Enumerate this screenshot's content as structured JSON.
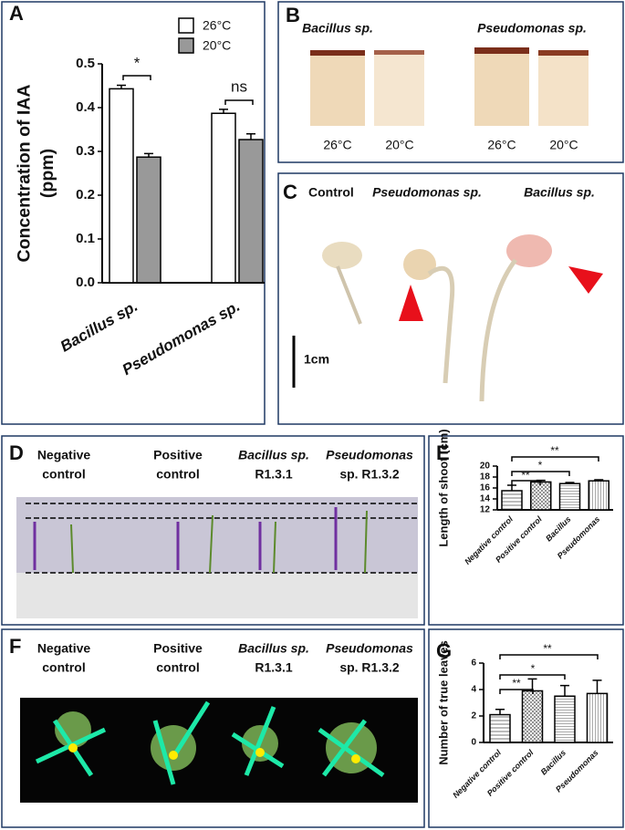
{
  "chart_data": [
    {
      "type": "bar",
      "ylabel": [
        "Concentration of IAA",
        "(ppm)"
      ],
      "categories": [
        "Bacillus sp.",
        "Pseudomonas sp."
      ],
      "series": [
        {
          "name": "26°C",
          "color": "#ffffff",
          "values": [
            0.443,
            0.387
          ],
          "errors": [
            0.008,
            0.009
          ]
        },
        {
          "name": "20°C",
          "color": "#999999",
          "values": [
            0.287,
            0.327
          ],
          "errors": [
            0.008,
            0.013
          ]
        }
      ],
      "ylim": [
        0,
        0.5
      ],
      "yticks": [
        {
          "value": 0,
          "label": "0.0"
        },
        0.1,
        0.2,
        0.3,
        0.4,
        0.5
      ],
      "annotations": [
        "*",
        "ns"
      ]
    },
    {
      "type": "bar",
      "ylabel": [
        "Length of shoot (cm)"
      ],
      "categories": [
        "Negative control",
        "Positive control",
        "Bacillus",
        "Pseudomonas"
      ],
      "series": [
        {
          "color": "#ffffff",
          "values": [
            15.5,
            17.1,
            16.8,
            17.3
          ],
          "errors": [
            1.0,
            0.3,
            0.2,
            0.2
          ]
        }
      ],
      "ylim": [
        12,
        20
      ],
      "yticks": [
        12,
        14,
        16,
        18,
        20
      ],
      "annotations": [
        "**",
        "*",
        "**"
      ]
    },
    {
      "type": "bar",
      "ylabel": [
        "Number of true leaves"
      ],
      "categories": [
        "Negative control",
        "Positive control",
        "Bacillus",
        "Pseudomonas"
      ],
      "series": [
        {
          "color": "#ffffff",
          "values": [
            2.1,
            3.9,
            3.5,
            3.7
          ],
          "errors": [
            0.4,
            0.9,
            0.8,
            1.0
          ]
        }
      ],
      "ylim": [
        0,
        6
      ],
      "yticks": [
        0,
        2,
        4,
        6
      ],
      "annotations": [
        "**",
        "*",
        "**"
      ]
    }
  ],
  "panels": {
    "A": {
      "letter": "A"
    },
    "B": {
      "letter": "B",
      "strains": [
        "Bacillus sp.",
        "Pseudomonas sp."
      ],
      "temperatures": [
        "26°C",
        "20°C",
        "26°C",
        "20°C"
      ]
    },
    "C": {
      "letter": "C",
      "labels": [
        "Control",
        "Pseudomonas sp.",
        "Bacillus sp."
      ],
      "scale": "1cm"
    },
    "D": {
      "letter": "D",
      "labels": [
        [
          "Negative",
          "control"
        ],
        [
          "Positive",
          "control"
        ],
        [
          "Bacillus sp.",
          "R1.3.1"
        ],
        [
          "Pseudomonas",
          "sp. R1.3.2"
        ]
      ]
    },
    "E": {
      "letter": "E"
    },
    "F": {
      "letter": "F",
      "labels": [
        [
          "Negative",
          "control"
        ],
        [
          "Positive",
          "control"
        ],
        [
          "Bacillus sp.",
          "R1.3.1"
        ],
        [
          "Pseudomonas",
          "sp. R1.3.2"
        ]
      ]
    },
    "G": {
      "letter": "G"
    }
  }
}
